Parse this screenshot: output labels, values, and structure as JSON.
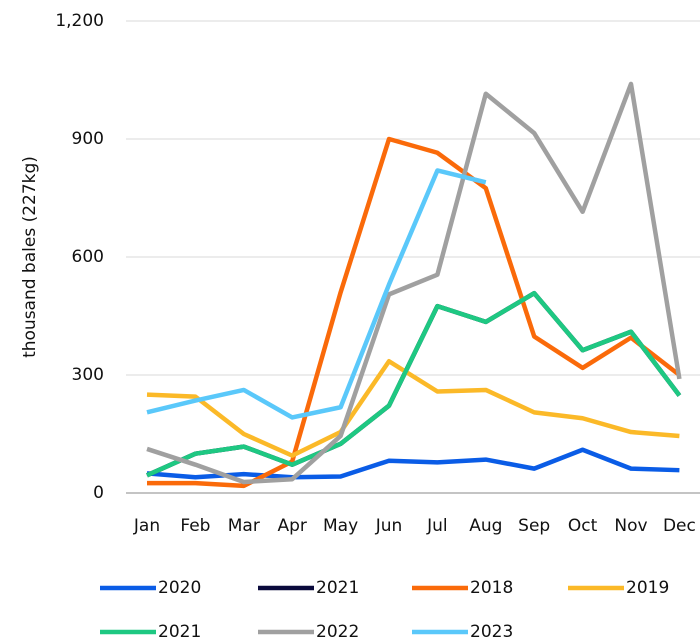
{
  "chart_data": {
    "type": "line",
    "y_label": "thousand bales (227kg)",
    "categories": [
      "Jan",
      "Feb",
      "Mar",
      "Apr",
      "May",
      "Jun",
      "Jul",
      "Aug",
      "Sep",
      "Oct",
      "Nov",
      "Dec"
    ],
    "ylim": [
      0,
      1200
    ],
    "yticks": [
      0,
      300,
      600,
      900,
      {
        "value": 1200,
        "label": "1,200"
      }
    ],
    "grid": true,
    "legend": "bottom",
    "series": [
      {
        "name": "2020",
        "color": "#0a5ce6",
        "values": [
          50,
          40,
          48,
          40,
          42,
          82,
          78,
          85,
          62,
          110,
          62,
          58
        ]
      },
      {
        "name": "2021",
        "color": "#0a0a3c",
        "values": [
          45,
          100,
          118,
          72,
          125,
          222,
          475,
          435,
          508,
          363,
          410,
          248
        ]
      },
      {
        "name": "2018",
        "color": "#fa6a0a",
        "values": [
          25,
          25,
          18,
          80,
          510,
          900,
          865,
          775,
          398,
          318,
          395,
          300
        ]
      },
      {
        "name": "2019",
        "color": "#fbb928",
        "values": [
          250,
          245,
          150,
          95,
          155,
          335,
          258,
          262,
          205,
          190,
          155,
          145
        ]
      },
      {
        "name": "2021",
        "color": "#1ec882",
        "values": [
          45,
          100,
          118,
          72,
          125,
          222,
          475,
          435,
          508,
          363,
          410,
          248
        ]
      },
      {
        "name": "2022",
        "color": "#a0a0a0",
        "values": [
          112,
          72,
          28,
          35,
          145,
          505,
          555,
          1015,
          915,
          715,
          1040,
          290
        ]
      },
      {
        "name": "2023",
        "color": "#5ac8fa",
        "values": [
          205,
          235,
          262,
          192,
          218,
          530,
          820,
          790,
          null,
          null,
          null,
          null
        ]
      }
    ]
  }
}
